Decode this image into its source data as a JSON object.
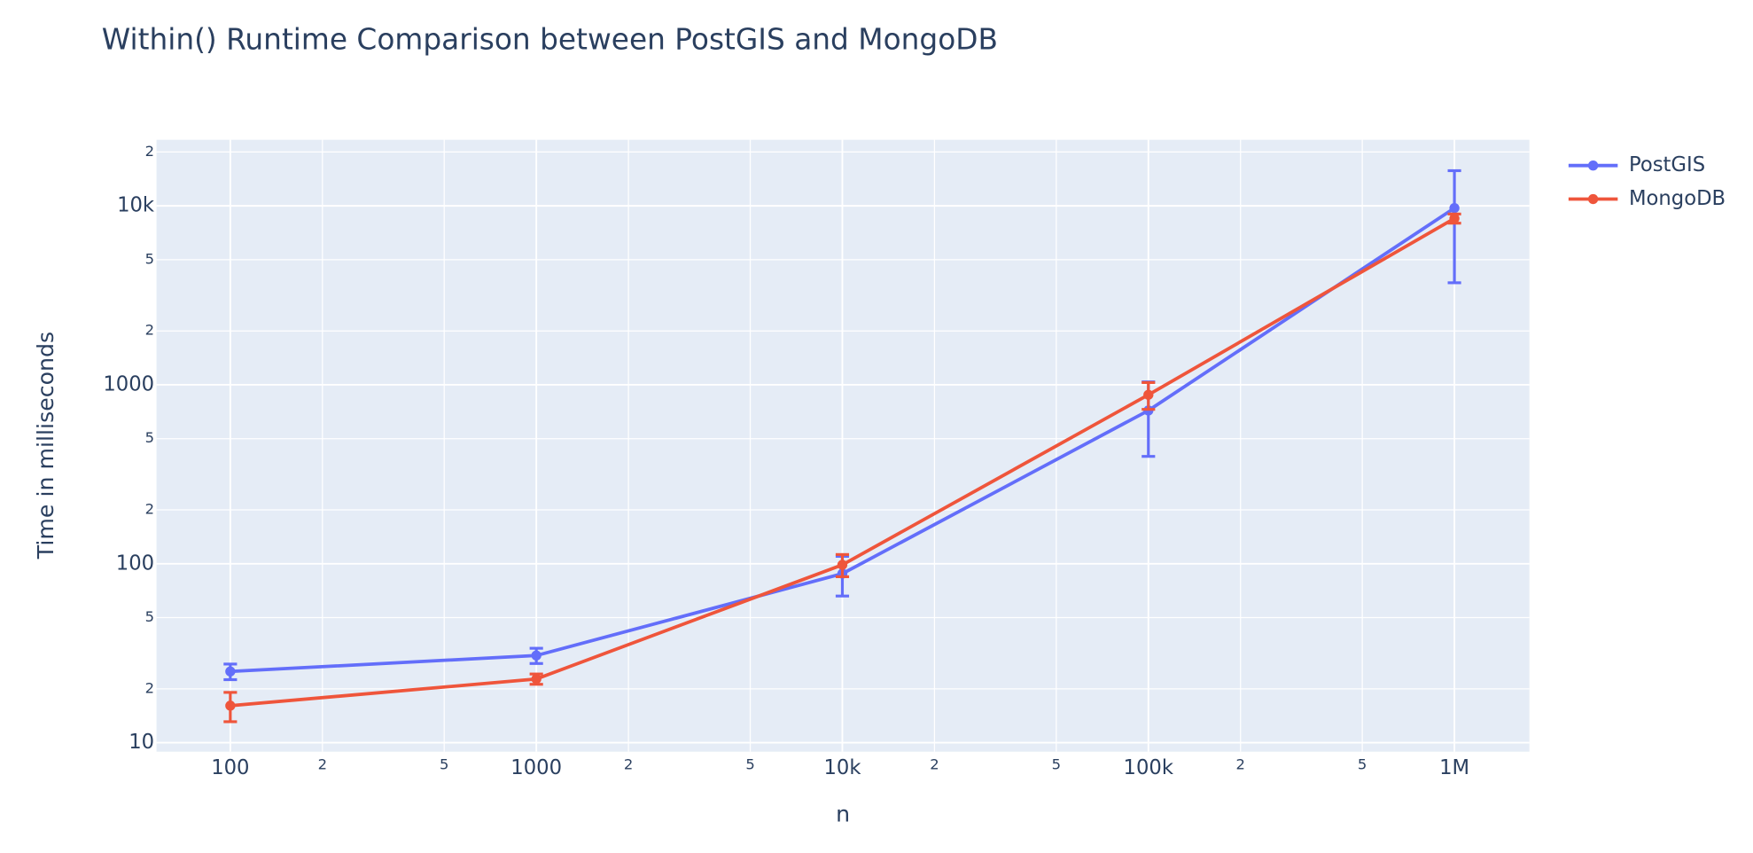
{
  "chart_data": {
    "type": "line",
    "title": "Within() Runtime Comparison between PostGIS and MongoDB",
    "x_label": "n",
    "y_label": "Time in milliseconds",
    "x": [
      100,
      1000,
      10000,
      100000,
      1000000
    ],
    "series": [
      {
        "name": "PostGIS",
        "color": "#636efa",
        "values": [
          25,
          30.7,
          88,
          718,
          9716
        ],
        "error": [
          2.5,
          3,
          22,
          320,
          6000
        ]
      },
      {
        "name": "MongoDB",
        "color": "#ef553b",
        "values": [
          16.1,
          22.7,
          98.6,
          879,
          8500
        ],
        "error": [
          3,
          1.5,
          14,
          150,
          500
        ]
      }
    ],
    "xscale": "log",
    "yscale": "log",
    "xlim": [
      57.4,
      1758000
    ],
    "ylim": [
      8.91,
      23380
    ],
    "xticks": [
      100,
      {
        "value": 200,
        "label": "2"
      },
      {
        "value": 500,
        "label": "5"
      },
      1000,
      {
        "value": 2000,
        "label": "2"
      },
      {
        "value": 5000,
        "label": "5"
      },
      {
        "value": 10000,
        "label": "10k"
      },
      {
        "value": 20000,
        "label": "2"
      },
      {
        "value": 50000,
        "label": "5"
      },
      {
        "value": 100000,
        "label": "100k"
      },
      {
        "value": 200000,
        "label": "2"
      },
      {
        "value": 500000,
        "label": "5"
      },
      {
        "value": 1000000,
        "label": "1M"
      }
    ],
    "yticks": [
      10,
      {
        "value": 20,
        "label": "2"
      },
      {
        "value": 50,
        "label": "5"
      },
      100,
      {
        "value": 200,
        "label": "2"
      },
      {
        "value": 500,
        "label": "5"
      },
      1000,
      {
        "value": 2000,
        "label": "2"
      },
      {
        "value": 5000,
        "label": "5"
      },
      {
        "value": 10000,
        "label": "10k"
      },
      {
        "value": 20000,
        "label": "2"
      }
    ],
    "grid": true,
    "legend": "outside-right"
  }
}
